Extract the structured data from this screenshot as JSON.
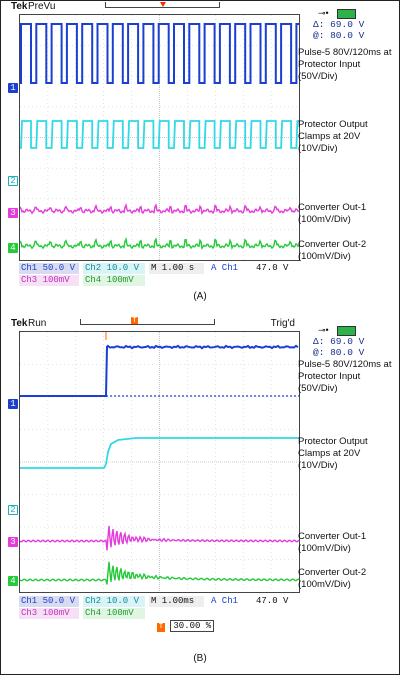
{
  "panel_a": {
    "brand": "Tek",
    "mode": "PreVu",
    "trig_status": "",
    "readout": {
      "delta": "Δ: 69.0 V",
      "at": "@: 80.0 V"
    },
    "ch_markers": [
      "1",
      "2",
      "3",
      "4"
    ],
    "annotations": {
      "pulse": "Pulse-5 80V/120ms at Protector Input (50V/Div)",
      "protector": "Protector Output Clamps at 20V (10V/Div)",
      "out1": "Converter Out-1 (100mV/Div)",
      "out2": "Converter Out-2 (100mV/Div)"
    },
    "footer": {
      "ch1": "Ch1  50.0 V",
      "ch2": "Ch2  10.0 V",
      "timebase": "M 1.00 s",
      "trig_src": "A  Ch1",
      "trig_level": "47.0 V",
      "ch3": "Ch3  100mV",
      "ch4": "Ch4  100mV"
    },
    "caption": "(A)"
  },
  "panel_b": {
    "brand": "Tek",
    "mode": "Run",
    "trig_status": "Trig'd",
    "readout": {
      "delta": "Δ: 69.0 V",
      "at": "@: 80.0 V"
    },
    "ch_markers": [
      "1",
      "2",
      "3",
      "4"
    ],
    "annotations": {
      "pulse": "Pulse-5 80V/120ms at Protector Input (50V/Div)",
      "protector": "Protector Output Clamps at 20V (10V/Div)",
      "out1": "Converter Out-1 (100mV/Div)",
      "out2": "Converter Out-2 (100mV/Div)"
    },
    "footer": {
      "ch1": "Ch1  50.0 V",
      "ch2": "Ch2  10.0 V",
      "timebase": "M 1.00ms",
      "trig_src": "A  Ch1",
      "trig_level": "47.0 V",
      "ch3": "Ch3  100mV",
      "ch4": "Ch4  100mV",
      "trig_pos": "30.00 %"
    },
    "caption": "(B)"
  },
  "colors": {
    "ch1": "#1a3fd1",
    "ch2": "#2fd9e6",
    "ch3": "#e43bdb",
    "ch4": "#25c93a",
    "trigger": "#ff6a00"
  }
}
